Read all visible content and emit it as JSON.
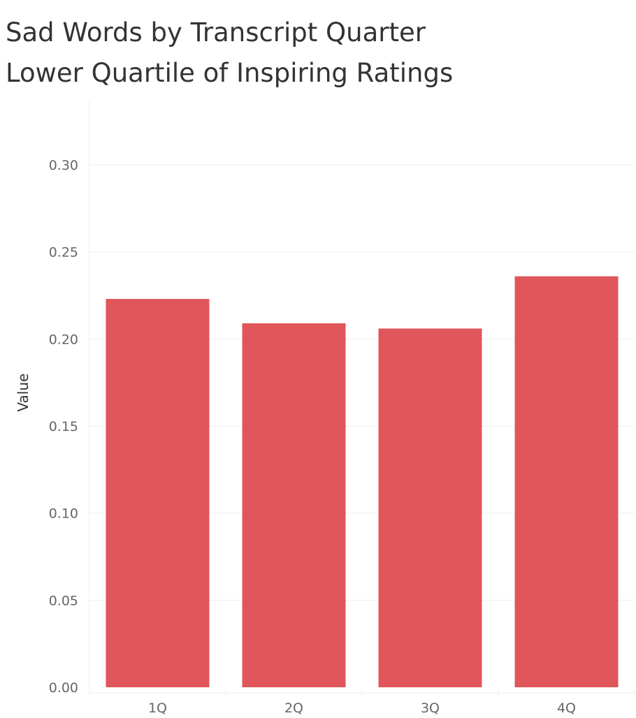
{
  "chart_data": {
    "type": "bar",
    "title_lines": [
      "Sad Words by Transcript Quarter",
      "Lower Quartile of Inspiring Ratings"
    ],
    "categories": [
      "1Q",
      "2Q",
      "3Q",
      "4Q"
    ],
    "values": [
      0.223,
      0.209,
      0.206,
      0.236
    ],
    "xlabel": "",
    "ylabel": "Value",
    "ylim": [
      0,
      0.33
    ],
    "yticks": [
      "0.00",
      "0.05",
      "0.10",
      "0.15",
      "0.20",
      "0.25",
      "0.30"
    ],
    "bar_color": "#E0565B",
    "grid_color": "#EEEEEE",
    "grid": true,
    "legend": "none"
  }
}
